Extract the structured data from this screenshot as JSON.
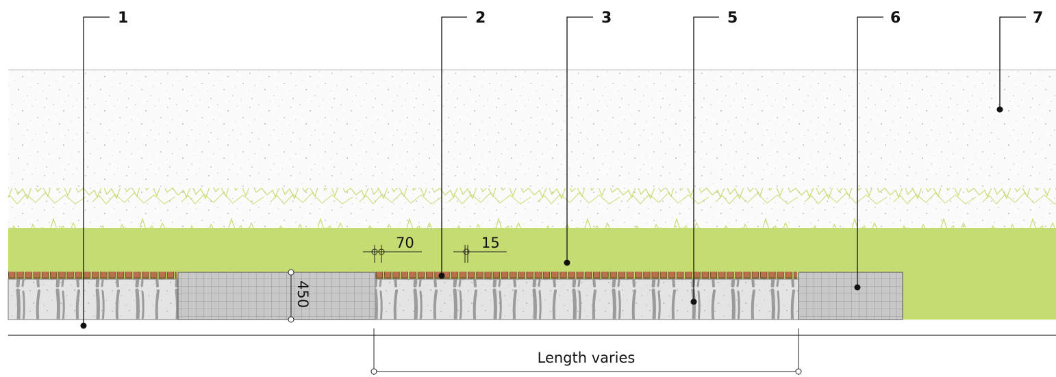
{
  "callouts": [
    {
      "label": "1"
    },
    {
      "label": "2"
    },
    {
      "label": "3"
    },
    {
      "label": "5"
    },
    {
      "label": "6"
    },
    {
      "label": "7"
    }
  ],
  "dimensions": {
    "brick_width": "70",
    "joint": "15",
    "depth": "450",
    "length": "Length varies"
  }
}
